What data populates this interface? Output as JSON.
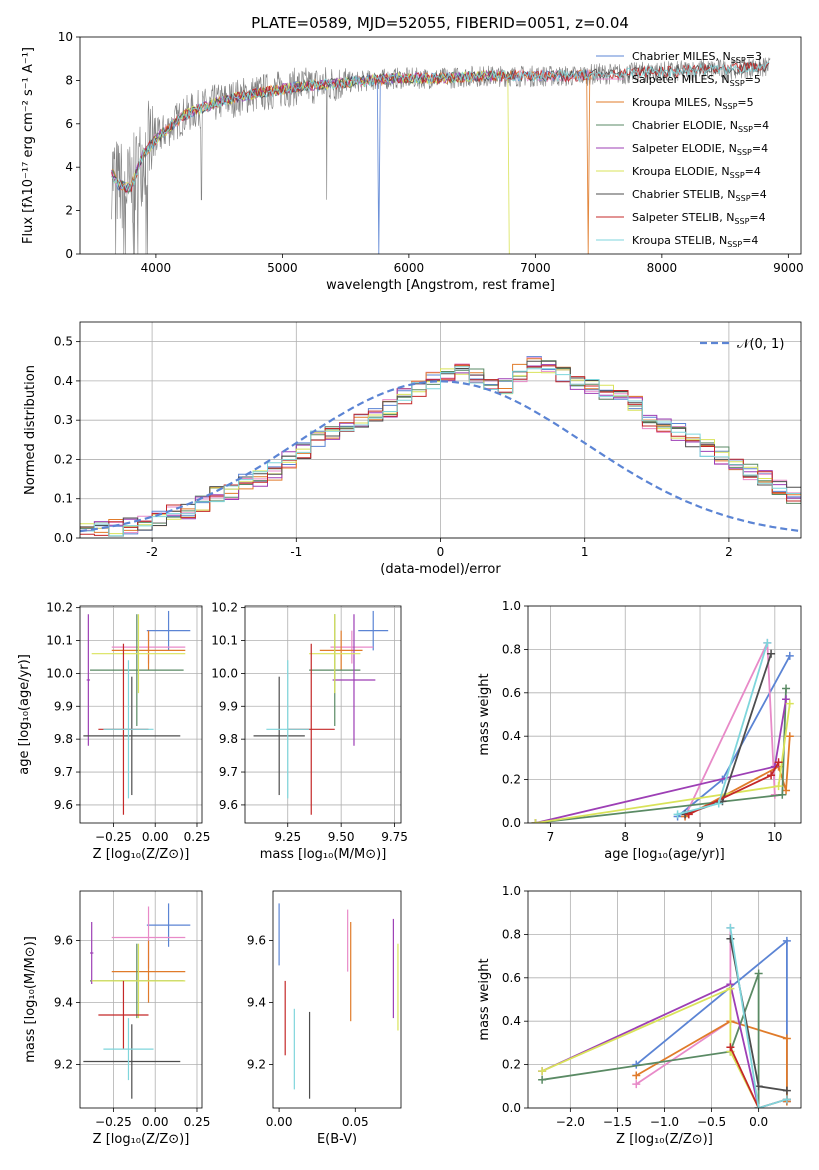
{
  "colors": [
    "#5b84d4",
    "#e88ac8",
    "#e07b2a",
    "#5a8a64",
    "#9d3fb5",
    "#d9e35a",
    "#4d4d4d",
    "#c42828",
    "#7fd6dc"
  ],
  "chart_data": [
    {
      "id": "spectrum",
      "type": "line",
      "title": "PLATE=0589, MJD=52055, FIBERID=0051, z=0.04",
      "xlabel": "wavelength [Angstrom, rest frame]",
      "ylabel": "Flux [fλ10⁻¹⁷ erg cm⁻² s⁻¹ A⁻¹]",
      "xlim": [
        3400,
        9100
      ],
      "ylim": [
        0,
        10
      ],
      "xticks": [
        4000,
        5000,
        6000,
        7000,
        8000,
        9000
      ],
      "yticks": [
        0,
        2,
        4,
        6,
        8,
        10
      ],
      "grid": false,
      "legend_position": "top-right",
      "data_color": "#808080",
      "model_continuum": {
        "x": [
          3650,
          3700,
          3800,
          3900,
          4000,
          4100,
          4200,
          4300,
          4500,
          4700,
          4900,
          5100,
          5300,
          5500,
          5700,
          5900,
          6100,
          6300,
          6500,
          6700,
          6900,
          7100,
          7300,
          7500,
          7700,
          7900,
          8100,
          8300,
          8500,
          8700,
          8850
        ],
        "y": [
          3.8,
          3.2,
          3.0,
          4.6,
          5.3,
          5.8,
          6.3,
          6.6,
          7.0,
          7.3,
          7.5,
          7.7,
          7.8,
          7.9,
          8.0,
          8.1,
          8.1,
          8.1,
          8.2,
          8.2,
          8.2,
          8.2,
          8.2,
          8.3,
          8.3,
          8.4,
          8.4,
          8.5,
          8.5,
          8.6,
          8.6
        ]
      },
      "series": [
        {
          "name": "Chabrier MILES, N_SSP=3",
          "label_main": "Chabrier MILES, N",
          "label_sub": "SSP",
          "label_end": "=3",
          "xmax": 7450,
          "drop_at": 5760
        },
        {
          "name": "Salpeter MILES, N_SSP=5",
          "label_main": "Salpeter MILES, N",
          "label_sub": "SSP",
          "label_end": "=5",
          "xmax": 7450
        },
        {
          "name": "Kroupa MILES, N_SSP=5",
          "label_main": "Kroupa MILES, N",
          "label_sub": "SSP",
          "label_end": "=5",
          "xmax": 7450,
          "drop_at": 7420
        },
        {
          "name": "Chabrier ELODIE, N_SSP=4",
          "label_main": "Chabrier ELODIE, N",
          "label_sub": "SSP",
          "label_end": "=4",
          "xmax": 6800
        },
        {
          "name": "Salpeter ELODIE, N_SSP=4",
          "label_main": "Salpeter ELODIE, N",
          "label_sub": "SSP",
          "label_end": "=4",
          "xmax": 6800
        },
        {
          "name": "Kroupa ELODIE, N_SSP=4",
          "label_main": "Kroupa ELODIE, N",
          "label_sub": "SSP",
          "label_end": "=4",
          "xmax": 6800,
          "drop_at": 6790
        },
        {
          "name": "Chabrier STELIB, N_SSP=4",
          "label_main": "Chabrier STELIB, N",
          "label_sub": "SSP",
          "label_end": "=4",
          "xmax": 8850
        },
        {
          "name": "Salpeter STELIB, N_SSP=4",
          "label_main": "Salpeter STELIB, N",
          "label_sub": "SSP",
          "label_end": "=4",
          "xmax": 8850
        },
        {
          "name": "Kroupa STELIB, N_SSP=4",
          "label_main": "Kroupa STELIB, N",
          "label_sub": "SSP",
          "label_end": "=4",
          "xmax": 8850
        }
      ]
    },
    {
      "id": "residuals",
      "type": "histogram",
      "xlabel": "(data-model)/error",
      "ylabel": "Normed distribution",
      "xlim": [
        -2.5,
        2.5
      ],
      "ylim": [
        0,
        0.55
      ],
      "xticks": [
        -2,
        -1,
        0,
        1,
        2
      ],
      "yticks": [
        0.0,
        0.1,
        0.2,
        0.3,
        0.4,
        0.5
      ],
      "grid": true,
      "legend_position": "top-right",
      "reference_curve": {
        "name": "N(0,1)",
        "label": "𝒩(0, 1)",
        "mean": 0,
        "sigma": 1,
        "color": "#5b84d4"
      },
      "bin_width": 0.1,
      "bin_start": -2.5,
      "values": [
        0.02,
        0.02,
        0.025,
        0.03,
        0.04,
        0.05,
        0.065,
        0.07,
        0.09,
        0.11,
        0.12,
        0.14,
        0.15,
        0.17,
        0.2,
        0.22,
        0.25,
        0.27,
        0.28,
        0.3,
        0.31,
        0.33,
        0.36,
        0.38,
        0.4,
        0.42,
        0.43,
        0.41,
        0.4,
        0.39,
        0.42,
        0.44,
        0.43,
        0.42,
        0.4,
        0.39,
        0.37,
        0.36,
        0.34,
        0.3,
        0.29,
        0.27,
        0.25,
        0.23,
        0.21,
        0.19,
        0.17,
        0.15,
        0.13,
        0.11
      ]
    },
    {
      "id": "age-vs-z",
      "type": "errorbar",
      "xlabel": "Z [log₁₀(Z/Z⊙)]",
      "ylabel": "age  [log₁₀(age/yr)]",
      "xlim": [
        -0.45,
        0.28
      ],
      "ylim": [
        9.545,
        10.205
      ],
      "xticks": [
        -0.25,
        0.0,
        0.25
      ],
      "xticklabels": [
        "−0.25",
        "0.00",
        "0.25"
      ],
      "yticks": [
        9.6,
        9.7,
        9.8,
        9.9,
        10.0,
        10.1,
        10.2
      ],
      "grid": true,
      "points": [
        {
          "x": 0.08,
          "xerr": 0.13,
          "y": 10.13,
          "yerr": 0.06,
          "c": 0
        },
        {
          "x": -0.04,
          "xerr": 0.22,
          "y": 10.08,
          "yerr": 0.05,
          "c": 1
        },
        {
          "x": -0.04,
          "xerr": 0.22,
          "y": 10.07,
          "yerr": 0.06,
          "c": 2
        },
        {
          "x": -0.11,
          "xerr": 0.28,
          "y": 10.01,
          "yerr": 0.17,
          "c": 3
        },
        {
          "x": -0.4,
          "xerr": 0.01,
          "y": 9.98,
          "yerr": 0.2,
          "c": 4
        },
        {
          "x": -0.1,
          "xerr": 0.28,
          "y": 10.06,
          "yerr": 0.12,
          "c": 5
        },
        {
          "x": -0.14,
          "xerr": 0.29,
          "y": 9.81,
          "yerr": 0.18,
          "c": 6
        },
        {
          "x": -0.19,
          "xerr": 0.15,
          "y": 9.83,
          "yerr": 0.26,
          "c": 7
        },
        {
          "x": -0.16,
          "xerr": 0.15,
          "y": 9.83,
          "yerr": 0.21,
          "c": 8
        }
      ]
    },
    {
      "id": "age-vs-mass",
      "type": "errorbar",
      "xlabel": "mass [log₁₀(M/M⊙)]",
      "ylabel": "",
      "xlim": [
        9.05,
        9.78
      ],
      "ylim": [
        9.545,
        10.205
      ],
      "xticks": [
        9.25,
        9.5,
        9.75
      ],
      "xticklabels": [
        "9.25",
        "9.50",
        "9.75"
      ],
      "yticks": [
        9.6,
        9.7,
        9.8,
        9.9,
        10.0,
        10.1,
        10.2
      ],
      "grid": true,
      "points": [
        {
          "x": 9.65,
          "xerr": 0.07,
          "y": 10.13,
          "yerr": 0.06,
          "c": 0
        },
        {
          "x": 9.55,
          "xerr": 0.1,
          "y": 10.08,
          "yerr": 0.05,
          "c": 1
        },
        {
          "x": 9.5,
          "xerr": 0.1,
          "y": 10.07,
          "yerr": 0.06,
          "c": 2
        },
        {
          "x": 9.47,
          "xerr": 0.12,
          "y": 10.01,
          "yerr": 0.17,
          "c": 3
        },
        {
          "x": 9.56,
          "xerr": 0.1,
          "y": 9.98,
          "yerr": 0.2,
          "c": 4
        },
        {
          "x": 9.47,
          "xerr": 0.12,
          "y": 10.06,
          "yerr": 0.12,
          "c": 5
        },
        {
          "x": 9.21,
          "xerr": 0.12,
          "y": 9.81,
          "yerr": 0.18,
          "c": 6
        },
        {
          "x": 9.36,
          "xerr": 0.11,
          "y": 9.83,
          "yerr": 0.26,
          "c": 7
        },
        {
          "x": 9.25,
          "xerr": 0.1,
          "y": 9.83,
          "yerr": 0.21,
          "c": 8
        }
      ]
    },
    {
      "id": "weight-vs-age",
      "type": "line",
      "xlabel": "age  [log₁₀(age/yr)]",
      "ylabel": "mass weight",
      "xlim": [
        6.7,
        10.35
      ],
      "ylim": [
        0,
        1
      ],
      "xticks": [
        7,
        8,
        9,
        10
      ],
      "yticks": [
        0.0,
        0.2,
        0.4,
        0.6,
        0.8,
        1.0
      ],
      "grid": true,
      "series": [
        {
          "c": 0,
          "x": [
            8.7,
            9.3,
            10.2
          ],
          "y": [
            0.03,
            0.2,
            0.77
          ]
        },
        {
          "c": 1,
          "x": [
            8.8,
            9.9,
            10.0
          ],
          "y": [
            0.03,
            0.83,
            0.13
          ]
        },
        {
          "c": 2,
          "x": [
            8.8,
            10.05,
            10.15,
            10.2
          ],
          "y": [
            0.03,
            0.26,
            0.15,
            0.4
          ]
        },
        {
          "c": 3,
          "x": [
            6.8,
            10.1,
            10.15
          ],
          "y": [
            0.0,
            0.13,
            0.62
          ]
        },
        {
          "c": 4,
          "x": [
            6.8,
            10.0,
            10.15
          ],
          "y": [
            0.0,
            0.26,
            0.57
          ]
        },
        {
          "c": 5,
          "x": [
            6.8,
            10.05,
            10.2
          ],
          "y": [
            0.0,
            0.17,
            0.55
          ]
        },
        {
          "c": 6,
          "x": [
            8.8,
            9.3,
            9.95
          ],
          "y": [
            0.04,
            0.1,
            0.78
          ]
        },
        {
          "c": 7,
          "x": [
            8.85,
            9.95,
            10.05
          ],
          "y": [
            0.04,
            0.22,
            0.28
          ]
        },
        {
          "c": 8,
          "x": [
            8.7,
            9.25,
            9.9
          ],
          "y": [
            0.04,
            0.09,
            0.83
          ]
        }
      ]
    },
    {
      "id": "mass-vs-z",
      "type": "errorbar",
      "xlabel": "Z [log₁₀(Z/Z⊙)]",
      "ylabel": "mass [log₁₀(M/M⊙)]",
      "xlim": [
        -0.45,
        0.28
      ],
      "ylim": [
        9.06,
        9.76
      ],
      "xticks": [
        -0.25,
        0.0,
        0.25
      ],
      "xticklabels": [
        "−0.25",
        "0.00",
        "0.25"
      ],
      "yticks": [
        9.2,
        9.4,
        9.6
      ],
      "grid": true,
      "points": [
        {
          "x": 0.08,
          "xerr": 0.13,
          "y": 9.65,
          "yerr": 0.07,
          "c": 0
        },
        {
          "x": -0.04,
          "xerr": 0.22,
          "y": 9.61,
          "yerr": 0.1,
          "c": 1
        },
        {
          "x": -0.04,
          "xerr": 0.22,
          "y": 9.5,
          "yerr": 0.1,
          "c": 2
        },
        {
          "x": -0.11,
          "xerr": 0.28,
          "y": 9.47,
          "yerr": 0.12,
          "c": 3
        },
        {
          "x": -0.38,
          "xerr": 0.01,
          "y": 9.56,
          "yerr": 0.1,
          "c": 4
        },
        {
          "x": -0.1,
          "xerr": 0.28,
          "y": 9.47,
          "yerr": 0.12,
          "c": 5
        },
        {
          "x": -0.14,
          "xerr": 0.29,
          "y": 9.21,
          "yerr": 0.12,
          "c": 6
        },
        {
          "x": -0.19,
          "xerr": 0.15,
          "y": 9.36,
          "yerr": 0.11,
          "c": 7
        },
        {
          "x": -0.16,
          "xerr": 0.15,
          "y": 9.25,
          "yerr": 0.1,
          "c": 8
        }
      ]
    },
    {
      "id": "mass-vs-ebv",
      "type": "errorbar",
      "xlabel": "E(B-V)",
      "ylabel": "",
      "xlim": [
        -0.004,
        0.08
      ],
      "ylim": [
        9.06,
        9.76
      ],
      "xticks": [
        0.0,
        0.05
      ],
      "xticklabels": [
        "0.00",
        "0.05"
      ],
      "yticks": [
        9.2,
        9.4,
        9.6
      ],
      "grid": false,
      "points": [
        {
          "x": 0.0,
          "xerr": 0,
          "y": 9.62,
          "yerr": 0.1,
          "c": 0
        },
        {
          "x": 0.045,
          "xerr": 0,
          "y": 9.6,
          "yerr": 0.1,
          "c": 1
        },
        {
          "x": 0.047,
          "xerr": 0,
          "y": 9.5,
          "yerr": 0.16,
          "c": 2
        },
        {
          "x": 0.075,
          "xerr": 0,
          "y": 9.51,
          "yerr": 0.16,
          "c": 4
        },
        {
          "x": 0.078,
          "xerr": 0,
          "y": 9.45,
          "yerr": 0.14,
          "c": 5
        },
        {
          "x": 0.02,
          "xerr": 0,
          "y": 9.23,
          "yerr": 0.14,
          "c": 6
        },
        {
          "x": 0.004,
          "xerr": 0,
          "y": 9.35,
          "yerr": 0.12,
          "c": 7
        },
        {
          "x": 0.01,
          "xerr": 0,
          "y": 9.25,
          "yerr": 0.13,
          "c": 8
        }
      ]
    },
    {
      "id": "weight-vs-z",
      "type": "line",
      "xlabel": "Z [log₁₀(Z/Z⊙)]",
      "ylabel": "mass weight",
      "xlim": [
        -2.45,
        0.45
      ],
      "ylim": [
        0,
        1
      ],
      "xticks": [
        -2.0,
        -1.5,
        -1.0,
        -0.5,
        0.0
      ],
      "xticklabels": [
        "−2.0",
        "−1.5",
        "−1.0",
        "−0.5",
        "0.0"
      ],
      "yticks": [
        0.0,
        0.2,
        0.4,
        0.6,
        0.8,
        1.0
      ],
      "grid": true,
      "series": [
        {
          "c": 0,
          "x": [
            -1.3,
            0.3,
            0.3
          ],
          "y": [
            0.2,
            0.77,
            0.03
          ]
        },
        {
          "c": 1,
          "x": [
            -1.3,
            -0.3,
            -0.3
          ],
          "y": [
            0.11,
            0.4,
            0.83
          ]
        },
        {
          "c": 2,
          "x": [
            -1.3,
            -0.3,
            0.3,
            0.3
          ],
          "y": [
            0.15,
            0.4,
            0.32,
            0.03
          ]
        },
        {
          "c": 3,
          "x": [
            -2.3,
            -0.3,
            0.0,
            0.0
          ],
          "y": [
            0.13,
            0.26,
            0.62,
            0.0
          ]
        },
        {
          "c": 4,
          "x": [
            -2.3,
            -0.3,
            0.0
          ],
          "y": [
            0.17,
            0.57,
            0.0
          ]
        },
        {
          "c": 5,
          "x": [
            -2.3,
            -0.3,
            -0.3,
            0.0
          ],
          "y": [
            0.17,
            0.55,
            0.26,
            0.0
          ]
        },
        {
          "c": 6,
          "x": [
            -0.3,
            0.0,
            0.3
          ],
          "y": [
            0.78,
            0.1,
            0.08
          ]
        },
        {
          "c": 7,
          "x": [
            -0.3,
            0.0,
            0.3
          ],
          "y": [
            0.28,
            0.0,
            0.04
          ]
        },
        {
          "c": 8,
          "x": [
            -0.3,
            0.0,
            0.3
          ],
          "y": [
            0.83,
            0.0,
            0.04
          ]
        }
      ]
    }
  ]
}
